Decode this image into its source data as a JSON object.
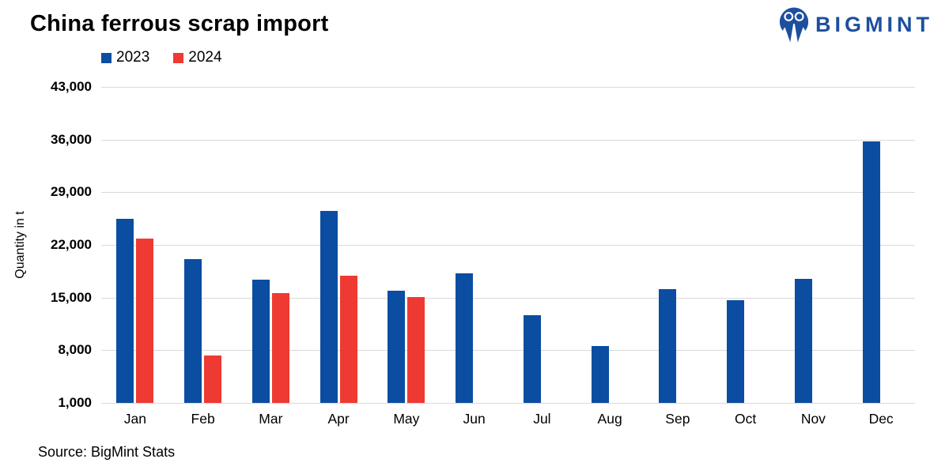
{
  "header": {
    "title": "China ferrous scrap import",
    "logo_text": "BIGMINT",
    "logo_color": "#1d4f9e"
  },
  "footer": {
    "source": "Source: BigMint Stats"
  },
  "chart_data": {
    "type": "bar",
    "title": "China ferrous scrap import",
    "xlabel": "",
    "ylabel": "Quantity in t",
    "categories": [
      "Jan",
      "Feb",
      "Mar",
      "Apr",
      "May",
      "Jun",
      "Jul",
      "Aug",
      "Sep",
      "Oct",
      "Nov",
      "Dec"
    ],
    "series": [
      {
        "name": "2023",
        "color": "#0b4da1",
        "values": [
          25500,
          20100,
          17400,
          26500,
          15900,
          18200,
          12700,
          8600,
          16100,
          14600,
          17500,
          35800
        ]
      },
      {
        "name": "2024",
        "color": "#ee3a32",
        "values": [
          22800,
          7300,
          15600,
          17900,
          15100,
          null,
          null,
          null,
          null,
          null,
          null,
          null
        ]
      }
    ],
    "ylim": [
      1000,
      43000
    ],
    "yticks": [
      1000,
      8000,
      15000,
      22000,
      29000,
      36000,
      43000
    ],
    "ytick_labels": [
      "1,000",
      "8,000",
      "15,000",
      "22,000",
      "29,000",
      "36,000",
      "43,000"
    ],
    "grid": true,
    "legend_position": "top-left",
    "gridline_color": "#d9d9d9"
  }
}
